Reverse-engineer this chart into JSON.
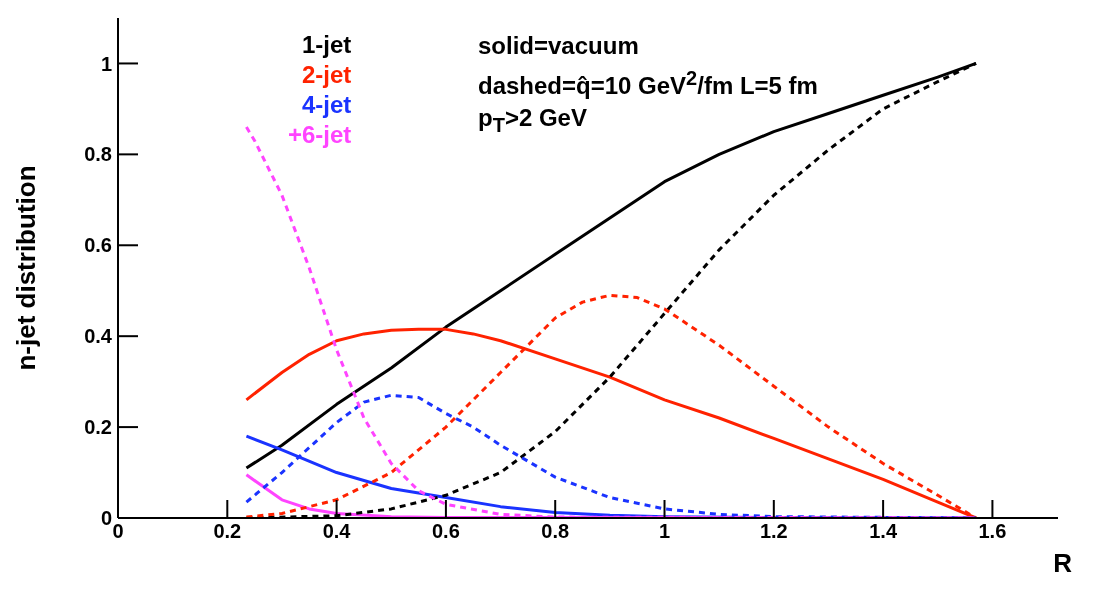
{
  "chart_data": {
    "type": "line",
    "xlabel": "R",
    "ylabel": "n-jet distribution",
    "xlim": [
      0,
      1.72
    ],
    "xticks": [
      0,
      0.2,
      0.4,
      0.6,
      0.8,
      1,
      1.2,
      1.4,
      1.6
    ],
    "ylim": [
      0,
      1.1
    ],
    "yticks": [
      0,
      0.2,
      0.4,
      0.6,
      0.8,
      1
    ],
    "grid": false,
    "legend": "top left",
    "marker": "none",
    "annotations": [
      "solid=vacuum",
      "dashed=q̂=10 GeV$^{2}$/fm L=5 fm",
      "p$_{T}$>2 GeV"
    ],
    "series": [
      {
        "name": "1-jet",
        "color": "#000000",
        "line_style": "solid",
        "x": [
          0.235,
          0.3,
          0.4,
          0.5,
          0.6,
          0.7,
          0.8,
          0.9,
          1.0,
          1.1,
          1.2,
          1.3,
          1.4,
          1.5,
          1.57
        ],
        "values": [
          0.11,
          0.16,
          0.25,
          0.33,
          0.42,
          0.5,
          0.58,
          0.66,
          0.74,
          0.8,
          0.85,
          0.89,
          0.93,
          0.97,
          1.0
        ]
      },
      {
        "name": "2-jet",
        "color": "#ff2200",
        "line_style": "solid",
        "x": [
          0.235,
          0.3,
          0.35,
          0.4,
          0.45,
          0.5,
          0.55,
          0.6,
          0.65,
          0.7,
          0.8,
          0.9,
          1.0,
          1.1,
          1.2,
          1.3,
          1.4,
          1.5,
          1.57
        ],
        "values": [
          0.26,
          0.32,
          0.36,
          0.39,
          0.405,
          0.413,
          0.415,
          0.415,
          0.405,
          0.39,
          0.35,
          0.31,
          0.26,
          0.22,
          0.175,
          0.13,
          0.085,
          0.035,
          0
        ]
      },
      {
        "name": "4-jet",
        "color": "#1a33ff",
        "line_style": "solid",
        "x": [
          0.235,
          0.3,
          0.4,
          0.5,
          0.6,
          0.7,
          0.8,
          0.9,
          1.0,
          1.2,
          1.57
        ],
        "values": [
          0.18,
          0.15,
          0.1,
          0.065,
          0.045,
          0.025,
          0.012,
          0.006,
          0.003,
          0.001,
          0
        ]
      },
      {
        "name": "+6-jet",
        "color": "#ff44ff",
        "line_style": "solid",
        "x": [
          0.235,
          0.3,
          0.35,
          0.4,
          0.5,
          0.6,
          1.57
        ],
        "values": [
          0.095,
          0.04,
          0.02,
          0.01,
          0.003,
          0.001,
          0
        ]
      },
      {
        "color": "#000000",
        "line_style": "dashed",
        "x": [
          0.235,
          0.4,
          0.5,
          0.6,
          0.7,
          0.8,
          0.9,
          1.0,
          1.1,
          1.2,
          1.3,
          1.4,
          1.5,
          1.57
        ],
        "values": [
          0,
          0.005,
          0.02,
          0.05,
          0.1,
          0.19,
          0.31,
          0.45,
          0.59,
          0.71,
          0.81,
          0.9,
          0.96,
          1.0
        ]
      },
      {
        "color": "#ff2200",
        "line_style": "dashed",
        "x": [
          0.235,
          0.3,
          0.4,
          0.5,
          0.6,
          0.7,
          0.8,
          0.85,
          0.9,
          0.95,
          1.0,
          1.1,
          1.2,
          1.3,
          1.4,
          1.5,
          1.57
        ],
        "values": [
          0.002,
          0.01,
          0.04,
          0.1,
          0.2,
          0.32,
          0.44,
          0.475,
          0.49,
          0.485,
          0.46,
          0.38,
          0.29,
          0.2,
          0.12,
          0.05,
          0
        ]
      },
      {
        "color": "#1a33ff",
        "line_style": "dashed",
        "x": [
          0.235,
          0.3,
          0.4,
          0.45,
          0.5,
          0.55,
          0.6,
          0.65,
          0.7,
          0.8,
          0.9,
          1.0,
          1.1,
          1.2,
          1.57
        ],
        "values": [
          0.035,
          0.1,
          0.21,
          0.255,
          0.27,
          0.265,
          0.23,
          0.2,
          0.16,
          0.09,
          0.045,
          0.02,
          0.008,
          0.003,
          0
        ]
      },
      {
        "color": "#ff44ff",
        "line_style": "dashed",
        "x": [
          0.235,
          0.25,
          0.3,
          0.35,
          0.4,
          0.45,
          0.5,
          0.55,
          0.6,
          0.7,
          0.8,
          1.57
        ],
        "values": [
          0.86,
          0.83,
          0.71,
          0.55,
          0.37,
          0.22,
          0.12,
          0.06,
          0.03,
          0.008,
          0.002,
          0
        ]
      }
    ]
  }
}
